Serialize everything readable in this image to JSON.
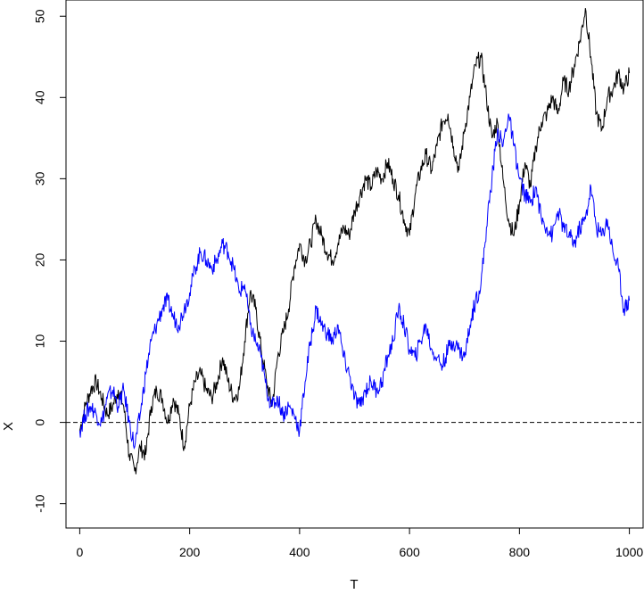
{
  "chart_data": {
    "type": "line",
    "title": "",
    "xlabel": "T",
    "ylabel": "X",
    "xlim": [
      -25,
      1025
    ],
    "ylim": [
      -13,
      52
    ],
    "x_ticks": [
      0,
      200,
      400,
      600,
      800,
      1000
    ],
    "y_ticks": [
      -10,
      0,
      10,
      20,
      30,
      40,
      50
    ],
    "x_tick_labels": [
      "0",
      "200",
      "400",
      "600",
      "800",
      "1000"
    ],
    "y_tick_labels": [
      "-10",
      "0",
      "10",
      "20",
      "30",
      "40",
      "50"
    ],
    "grid": false,
    "legend": "none",
    "reference_line": {
      "y": 0,
      "style": "dashed",
      "color": "#000000"
    },
    "series": [
      {
        "color": "#000000",
        "x": [
          0,
          10,
          20,
          30,
          40,
          50,
          60,
          70,
          80,
          90,
          100,
          110,
          120,
          130,
          140,
          150,
          160,
          170,
          180,
          190,
          200,
          210,
          220,
          230,
          240,
          250,
          260,
          270,
          280,
          290,
          300,
          310,
          320,
          330,
          340,
          350,
          360,
          370,
          380,
          390,
          400,
          410,
          420,
          430,
          440,
          450,
          460,
          470,
          480,
          490,
          500,
          510,
          520,
          530,
          540,
          550,
          560,
          570,
          580,
          590,
          600,
          610,
          620,
          630,
          640,
          650,
          660,
          670,
          680,
          690,
          700,
          710,
          720,
          730,
          740,
          750,
          760,
          770,
          780,
          790,
          800,
          810,
          820,
          830,
          840,
          850,
          860,
          870,
          880,
          890,
          900,
          910,
          920,
          930,
          940,
          950,
          960,
          970,
          980,
          990,
          1000
        ],
        "values": [
          -1,
          2,
          4,
          5,
          3,
          1,
          2,
          4,
          2,
          -4,
          -6,
          -3,
          -4,
          2,
          4,
          3,
          0,
          3,
          1,
          -3,
          2,
          5,
          6,
          4,
          3,
          5,
          8,
          5,
          3,
          4,
          10,
          16,
          14,
          9,
          5,
          2,
          8,
          11,
          14,
          19,
          22,
          20,
          22,
          25,
          23,
          21,
          20,
          22,
          24,
          23,
          26,
          28,
          30,
          29,
          31,
          30,
          32,
          30,
          28,
          25,
          23,
          28,
          31,
          33,
          31,
          34,
          37,
          38,
          34,
          31,
          36,
          40,
          44,
          45,
          40,
          35,
          37,
          30,
          25,
          23,
          27,
          32,
          29,
          34,
          37,
          38,
          40,
          38,
          42,
          41,
          44,
          47,
          51,
          45,
          38,
          36,
          40,
          41,
          43,
          41,
          43
        ]
      },
      {
        "color": "#0000ff",
        "x": [
          0,
          10,
          20,
          30,
          40,
          50,
          60,
          70,
          80,
          90,
          100,
          110,
          120,
          130,
          140,
          150,
          160,
          170,
          180,
          190,
          200,
          210,
          220,
          230,
          240,
          250,
          260,
          270,
          280,
          290,
          300,
          310,
          320,
          330,
          340,
          350,
          360,
          370,
          380,
          390,
          400,
          410,
          420,
          430,
          440,
          450,
          460,
          470,
          480,
          490,
          500,
          510,
          520,
          530,
          540,
          550,
          560,
          570,
          580,
          590,
          600,
          610,
          620,
          630,
          640,
          650,
          660,
          670,
          680,
          690,
          700,
          710,
          720,
          730,
          740,
          750,
          760,
          770,
          780,
          790,
          800,
          810,
          820,
          830,
          840,
          850,
          860,
          870,
          880,
          890,
          900,
          910,
          920,
          930,
          940,
          950,
          960,
          970,
          980,
          990,
          1000
        ],
        "values": [
          -1,
          1,
          2,
          1,
          0,
          3,
          4,
          2,
          4,
          0,
          -3,
          1,
          6,
          10,
          12,
          14,
          15,
          13,
          12,
          14,
          16,
          19,
          21,
          20,
          19,
          20,
          22,
          21,
          19,
          16,
          17,
          12,
          10,
          8,
          4,
          2,
          3,
          1,
          2,
          1,
          -1,
          5,
          10,
          14,
          12,
          11,
          10,
          12,
          8,
          6,
          3,
          2,
          4,
          5,
          4,
          5,
          8,
          10,
          14,
          12,
          9,
          8,
          10,
          12,
          9,
          8,
          7,
          9,
          10,
          9,
          8,
          12,
          15,
          17,
          24,
          30,
          36,
          34,
          38,
          34,
          30,
          28,
          27,
          29,
          25,
          24,
          23,
          26,
          24,
          23,
          22,
          24,
          25,
          29,
          24,
          23,
          25,
          21,
          19,
          14,
          15
        ]
      }
    ]
  }
}
